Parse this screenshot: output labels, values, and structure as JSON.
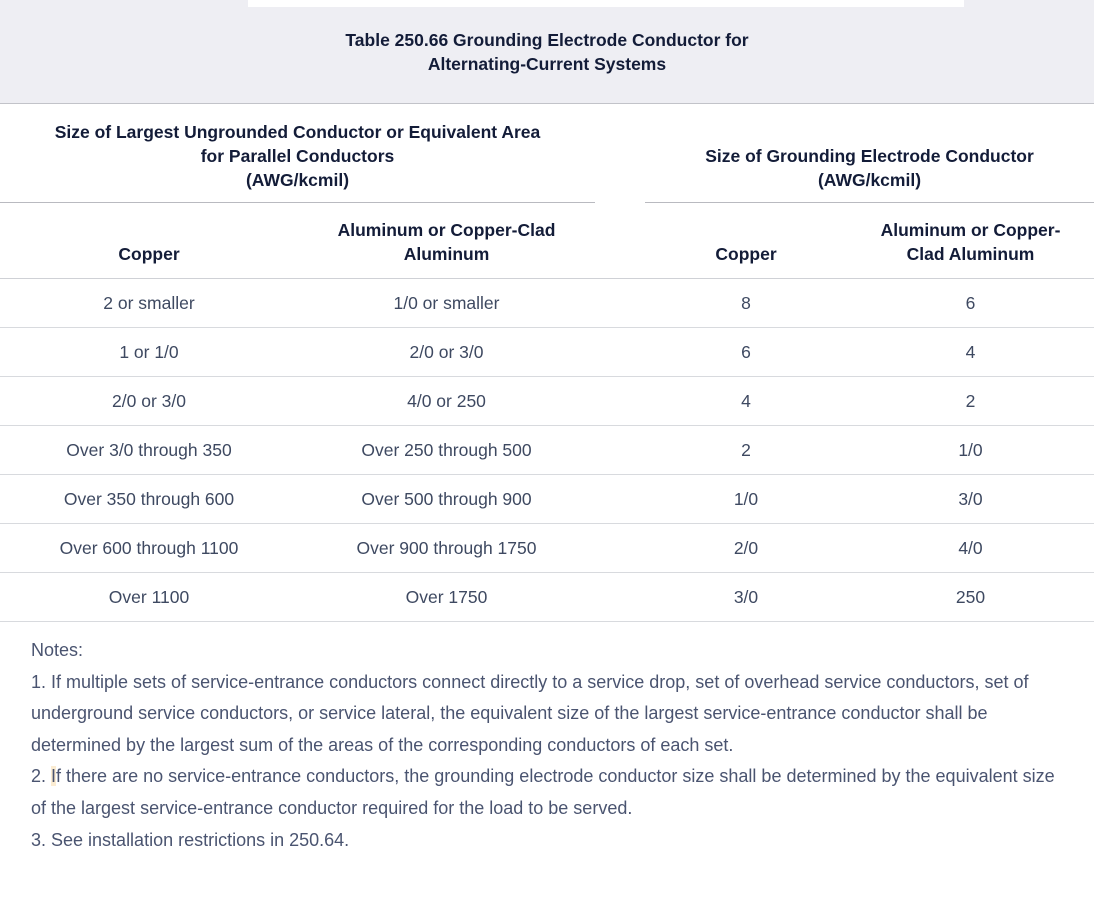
{
  "title": {
    "line1": "Table 250.66 Grounding Electrode Conductor for",
    "line2": "Alternating-Current Systems"
  },
  "table": {
    "group_headers": [
      {
        "lines": [
          "Size of Largest Ungrounded Conductor or Equivalent Area",
          "for Parallel Conductors",
          "(AWG/kcmil)"
        ]
      },
      {
        "lines": [
          "Size of Grounding Electrode Conductor",
          "(AWG/kcmil)"
        ]
      }
    ],
    "column_headers": [
      "Copper",
      "Aluminum or Copper-Clad Aluminum",
      "Copper",
      "Aluminum or Copper-Clad Aluminum"
    ],
    "rows": [
      [
        "2 or smaller",
        "1/0 or smaller",
        "8",
        "6"
      ],
      [
        "1 or 1/0",
        "2/0 or 3/0",
        "6",
        "4"
      ],
      [
        "2/0 or 3/0",
        "4/0 or 250",
        "4",
        "2"
      ],
      [
        "Over 3/0 through 350",
        "Over 250 through 500",
        "2",
        "1/0"
      ],
      [
        "Over 350 through 600",
        "Over 500 through 900",
        "1/0",
        "3/0"
      ],
      [
        "Over 600 through 1100",
        "Over 900 through 1750",
        "2/0",
        "4/0"
      ],
      [
        "Over 1100",
        "Over 1750",
        "3/0",
        "250"
      ]
    ]
  },
  "notes": {
    "heading": "Notes:",
    "note1": "1. If multiple sets of service-entrance conductors connect directly to a service drop, set of overhead service conductors, set of underground service conductors, or service lateral, the equivalent size of the largest service-entrance conductor shall be determined by the largest sum of the areas of the corresponding conductors of each set.",
    "note2_prefix": "2. ",
    "note2_highlighted": "I",
    "note2_rest": "f there are no service-entrance conductors, the grounding electrode conductor size shall be determined by the equivalent size of the largest service-entrance conductor required for the load to be served.",
    "note3": "3. See installation restrictions in 250.64."
  },
  "colors": {
    "title_band_background": "#eeeef3",
    "header_text": "#131c38",
    "body_text": "#3e4961",
    "notes_text": "#4a5470",
    "major_rule": "#b9bac0",
    "row_rule": "#d8dade",
    "highlight": "#fbecd2"
  }
}
